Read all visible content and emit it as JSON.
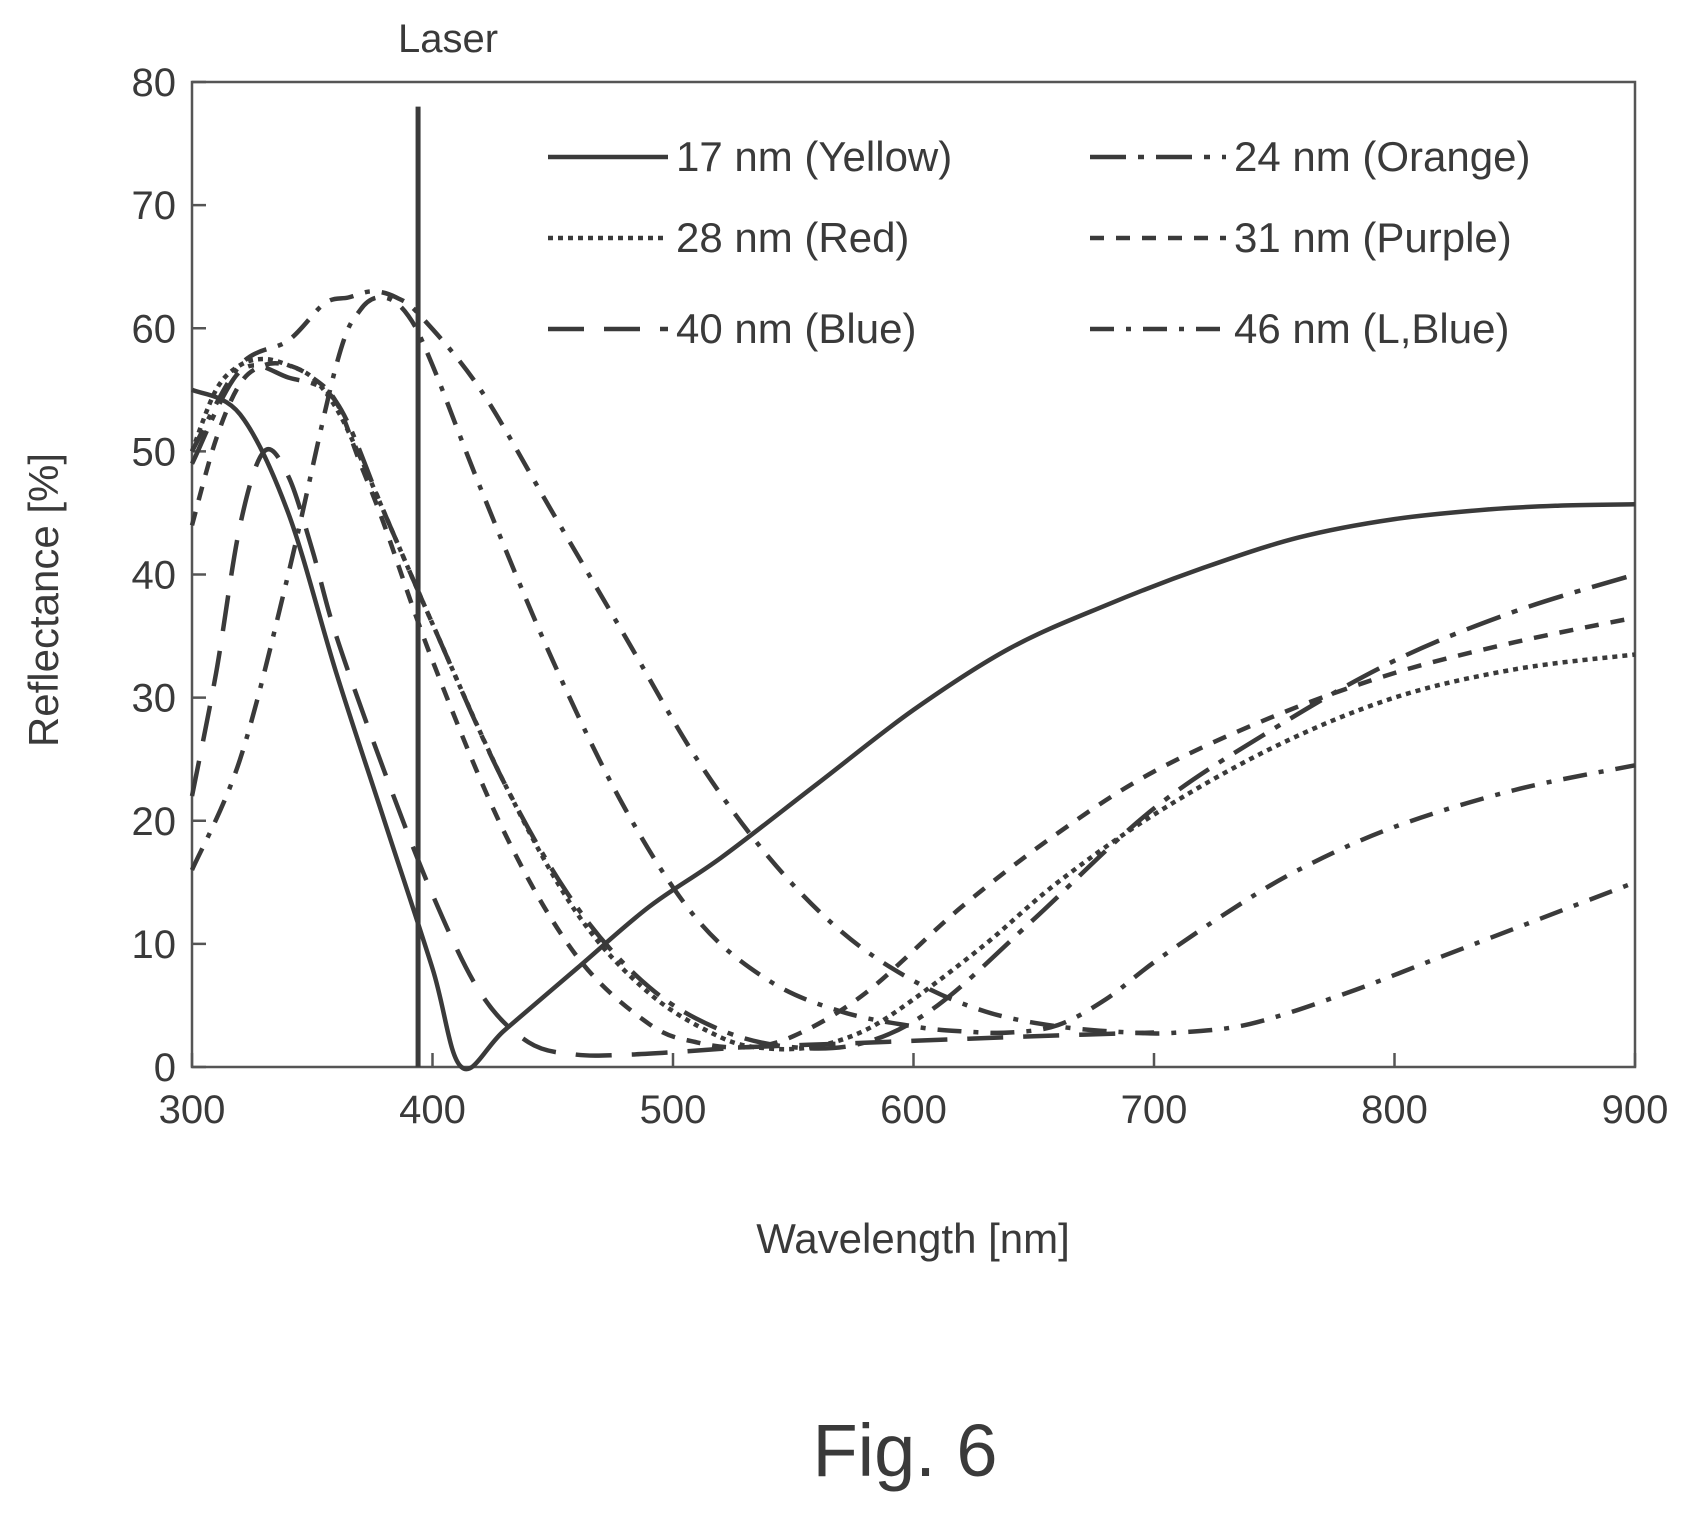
{
  "chart_data": {
    "type": "line",
    "xlabel": "Wavelength [nm]",
    "ylabel": "Reflectance [%]",
    "xlim": [
      300,
      900
    ],
    "ylim": [
      0,
      80
    ],
    "xticks": [
      300,
      400,
      500,
      600,
      700,
      800,
      900
    ],
    "yticks": [
      0,
      10,
      20,
      30,
      40,
      50,
      60,
      70,
      80
    ],
    "grid": false,
    "legend_position": "top-right",
    "marker": {
      "label": "Laser",
      "x": 394
    },
    "series": [
      {
        "name": "17 nm (Yellow)",
        "dash": "solid",
        "x": [
          300,
          320,
          340,
          360,
          380,
          400,
          412,
          430,
          460,
          490,
          520,
          560,
          600,
          640,
          680,
          720,
          760,
          800,
          840,
          870,
          900
        ],
        "y": [
          55,
          53,
          45,
          32,
          20,
          8,
          0,
          3,
          8,
          13,
          17,
          23,
          29,
          34,
          37.5,
          40.5,
          43,
          44.5,
          45.3,
          45.6,
          45.7
        ]
      },
      {
        "name": "24 nm (Orange)",
        "dash": "dashdot-long",
        "x": [
          300,
          320,
          340,
          360,
          380,
          400,
          430,
          460,
          490,
          520,
          550,
          580,
          610,
          650,
          700,
          750,
          800,
          850,
          900
        ],
        "y": [
          49,
          56.5,
          56,
          54,
          45,
          36,
          23,
          13,
          6.5,
          3,
          1.6,
          2,
          5,
          12,
          21,
          27.5,
          33,
          37,
          40
        ]
      },
      {
        "name": "28 nm (Red)",
        "dash": "dotted",
        "x": [
          300,
          310,
          320,
          330,
          340,
          350,
          360,
          370,
          380,
          400,
          430,
          460,
          490,
          520,
          540,
          560,
          580,
          600,
          630,
          660,
          700,
          750,
          800,
          850,
          900
        ],
        "y": [
          50,
          55,
          57,
          57.5,
          57,
          56,
          53.5,
          49.5,
          45,
          36,
          23,
          12.5,
          6,
          2.4,
          1.5,
          1.7,
          3,
          5.5,
          10,
          15,
          20.5,
          26,
          30,
          32.3,
          33.5
        ]
      },
      {
        "name": "31 nm (Purple)",
        "dash": "dashed-short",
        "x": [
          300,
          310,
          320,
          330,
          340,
          350,
          360,
          370,
          380,
          400,
          430,
          460,
          490,
          510,
          530,
          550,
          580,
          620,
          660,
          700,
          750,
          800,
          850,
          900
        ],
        "y": [
          44,
          51,
          55.5,
          57,
          57,
          56,
          54,
          49,
          44,
          33,
          19,
          9,
          3.5,
          2,
          1.6,
          2.5,
          6,
          13,
          19,
          24,
          28.5,
          32,
          34.5,
          36.5
        ]
      },
      {
        "name": "40 nm (Blue)",
        "dash": "dashed-long",
        "x": [
          300,
          310,
          320,
          330,
          340,
          350,
          360,
          380,
          400,
          420,
          440,
          460,
          480,
          500,
          530,
          570,
          610,
          650,
          700
        ],
        "y": [
          22,
          32,
          44,
          50,
          48,
          42,
          35,
          24,
          14,
          6,
          2,
          1,
          1,
          1.2,
          1.6,
          1.9,
          2.2,
          2.5,
          2.8
        ]
      },
      {
        "name": "46 nm (L,Blue)",
        "dash": "dashdot",
        "x": [
          300,
          320,
          340,
          360,
          370,
          380,
          390,
          400,
          420,
          450,
          480,
          510,
          540,
          570,
          600,
          620,
          640,
          660,
          680,
          700,
          730,
          760,
          800,
          850,
          900
        ],
        "y": [
          16,
          25,
          40,
          57,
          61.5,
          62.5,
          61,
          57,
          47,
          33,
          21,
          12,
          7,
          4.5,
          3.3,
          2.9,
          2.8,
          3.4,
          5.5,
          8.5,
          12.5,
          16,
          19.5,
          22.5,
          24.5
        ]
      },
      {
        "name": "",
        "dash": "dashdot",
        "x": [
          300,
          320,
          340,
          355,
          365,
          375,
          385,
          395,
          420,
          450,
          480,
          510,
          540,
          570,
          600,
          630,
          660,
          690,
          710,
          740,
          780,
          820,
          860,
          900
        ],
        "y": [
          50,
          57,
          59,
          62,
          62.5,
          63,
          62.5,
          61,
          55,
          45,
          35,
          25,
          17,
          11,
          7,
          4.5,
          3.3,
          2.8,
          2.8,
          3.5,
          6,
          9,
          12,
          15
        ]
      }
    ]
  },
  "caption": "Fig. 6",
  "colors": {
    "ink": "#3a3a3a",
    "frame": "#555555"
  }
}
